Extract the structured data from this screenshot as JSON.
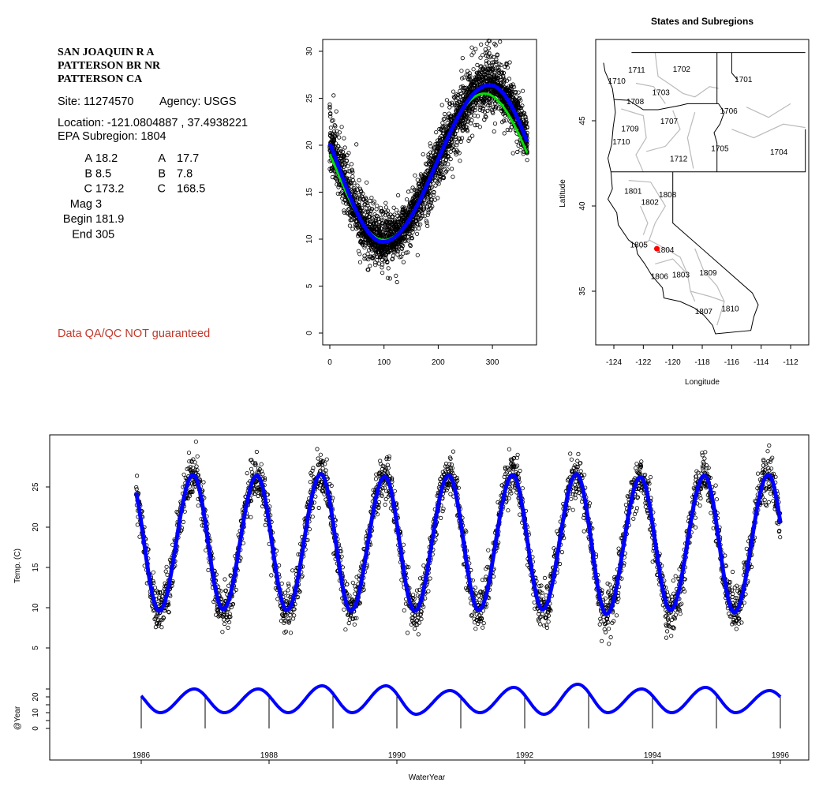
{
  "header": {
    "title_lines": [
      "SAN JOAQUIN R A",
      "PATTERSON BR NR",
      "PATTERSON CA"
    ],
    "site": "Site: 11274570",
    "agency": "Agency: USGS",
    "location": "Location: -121.0804887 , 37.4938221",
    "epa_subregion": "EPA Subregion: 1804"
  },
  "params": {
    "left": [
      {
        "k": "A",
        "v": "18.2"
      },
      {
        "k": "B",
        "v": "8.5"
      },
      {
        "k": "C",
        "v": "173.2"
      },
      {
        "k": "Mag",
        "v": "3"
      },
      {
        "k": "Begin",
        "v": "181.9"
      },
      {
        "k": "End",
        "v": "305"
      }
    ],
    "right": [
      {
        "k": "A",
        "v": "17.7"
      },
      {
        "k": "B",
        "v": "7.8"
      },
      {
        "k": "C",
        "v": "168.5"
      }
    ]
  },
  "disclaimer": "Data QA/QC NOT guaranteed",
  "colors": {
    "fit_blue": "#0000ff",
    "fit_green": "#00e000",
    "points": "#000000",
    "disclaimer": "#c0392b",
    "site_marker": "#ff0000",
    "subregion_lines": "#bbbbbb"
  },
  "chart_data": [
    {
      "type": "scatter",
      "name": "seasonal-day-of-water-year",
      "title": "",
      "xlabel": "",
      "ylabel": "",
      "xlim": [
        -5,
        380
      ],
      "ylim": [
        -1,
        31
      ],
      "xticks": [
        "0",
        "100",
        "200",
        "300"
      ],
      "yticks": [
        "0",
        "5",
        "10",
        "15",
        "20",
        "25",
        "30"
      ],
      "points_model": {
        "n_years": 10,
        "noise_sd": 1.6
      },
      "series": [
        {
          "name": "fit-blue",
          "color": "#0000ff",
          "trough_day": 98,
          "trough_value": 9.7,
          "peak_day": 295,
          "peak_value": 26.4
        },
        {
          "name": "fit-green",
          "color": "#00e000",
          "trough_day": 100,
          "trough_value": 9.9,
          "peak_day": 285,
          "peak_value": 25.5
        }
      ],
      "x_range_days": [
        0,
        365
      ]
    },
    {
      "type": "map",
      "name": "states-and-subregions",
      "title": "States and Subregions",
      "xlabel": "Longitude",
      "ylabel": "Latitude",
      "xticks": [
        "-124",
        "-122",
        "-120",
        "-118",
        "-116",
        "-114",
        "-112"
      ],
      "yticks": [
        "35",
        "40",
        "45"
      ],
      "site": {
        "lon": -121.0804887,
        "lat": 37.4938221
      },
      "subregions": [
        {
          "id": "1702",
          "lon": -119.4,
          "lat": 48.05
        },
        {
          "id": "1701",
          "lon": -115.2,
          "lat": 47.45
        },
        {
          "id": "1711",
          "lon": -122.45,
          "lat": 48.0
        },
        {
          "id": "1710",
          "lon": -123.8,
          "lat": 47.35
        },
        {
          "id": "1703",
          "lon": -120.8,
          "lat": 46.7
        },
        {
          "id": "1708",
          "lon": -122.55,
          "lat": 46.15
        },
        {
          "id": "1706",
          "lon": -116.2,
          "lat": 45.6
        },
        {
          "id": "1707",
          "lon": -120.25,
          "lat": 45.0
        },
        {
          "id": "1709",
          "lon": -122.9,
          "lat": 44.55
        },
        {
          "id": "1710",
          "lon": -123.5,
          "lat": 43.8
        },
        {
          "id": "1705",
          "lon": -116.8,
          "lat": 43.4
        },
        {
          "id": "1704",
          "lon": -112.8,
          "lat": 43.2
        },
        {
          "id": "1712",
          "lon": -119.6,
          "lat": 42.8
        },
        {
          "id": "1801",
          "lon": -122.7,
          "lat": 40.9
        },
        {
          "id": "1808",
          "lon": -120.35,
          "lat": 40.7
        },
        {
          "id": "1802",
          "lon": -121.55,
          "lat": 40.25
        },
        {
          "id": "1805",
          "lon": -122.3,
          "lat": 37.75
        },
        {
          "id": "1804",
          "lon": -120.5,
          "lat": 37.45
        },
        {
          "id": "1806",
          "lon": -120.9,
          "lat": 35.9
        },
        {
          "id": "1803",
          "lon": -119.45,
          "lat": 36.0
        },
        {
          "id": "1809",
          "lon": -117.6,
          "lat": 36.1
        },
        {
          "id": "1807",
          "lon": -117.9,
          "lat": 33.85
        },
        {
          "id": "1810",
          "lon": -116.1,
          "lat": 34.0
        }
      ],
      "state_lines": [
        [
          [
            -124.7,
            48.4
          ],
          [
            -124.6,
            47.9
          ],
          [
            -124.1,
            46.9
          ],
          [
            -124.0,
            46.3
          ],
          [
            -123.9,
            45.5
          ],
          [
            -124.05,
            44.6
          ],
          [
            -124.15,
            43.6
          ],
          [
            -124.4,
            42.8
          ],
          [
            -124.2,
            42.0
          ],
          [
            -124.1,
            41.0
          ],
          [
            -124.4,
            40.4
          ],
          [
            -123.8,
            39.6
          ],
          [
            -123.7,
            38.9
          ],
          [
            -123.0,
            38.0
          ],
          [
            -122.5,
            37.7
          ],
          [
            -122.4,
            37.2
          ],
          [
            -121.9,
            36.6
          ],
          [
            -121.4,
            35.9
          ],
          [
            -120.7,
            35.2
          ],
          [
            -120.6,
            34.6
          ],
          [
            -119.5,
            34.4
          ],
          [
            -118.5,
            34.0
          ],
          [
            -117.9,
            33.6
          ],
          [
            -117.3,
            33.0
          ],
          [
            -117.1,
            32.5
          ],
          [
            -114.7,
            32.7
          ],
          [
            -114.5,
            33.5
          ],
          [
            -114.2,
            34.2
          ],
          [
            -114.6,
            34.9
          ],
          [
            -120.0,
            39.0
          ],
          [
            -120.0,
            42.0
          ]
        ],
        [
          [
            -124.2,
            42.0
          ],
          [
            -111.0,
            42.0
          ],
          [
            -111.0,
            44.5
          ]
        ],
        [
          [
            -124.0,
            46.25
          ],
          [
            -123.0,
            46.2
          ],
          [
            -122.0,
            45.65
          ],
          [
            -121.0,
            45.65
          ],
          [
            -119.5,
            45.9
          ],
          [
            -119.0,
            46.0
          ],
          [
            -116.9,
            46.0
          ],
          [
            -116.5,
            45.5
          ],
          [
            -116.8,
            44.8
          ],
          [
            -117.2,
            44.3
          ],
          [
            -117.0,
            43.7
          ],
          [
            -117.0,
            42.0
          ]
        ],
        [
          [
            -117.0,
            49.0
          ],
          [
            -117.0,
            46.0
          ]
        ],
        [
          [
            -116.0,
            49.0
          ],
          [
            -116.0,
            47.8
          ],
          [
            -115.6,
            47.4
          ]
        ],
        [
          [
            -122.8,
            49.0
          ],
          [
            -111.0,
            49.0
          ]
        ]
      ],
      "subregion_lines": [
        [
          [
            -121.2,
            49
          ],
          [
            -121.0,
            47.6
          ],
          [
            -120.3,
            47.2
          ],
          [
            -119.3,
            46.6
          ],
          [
            -118.5,
            46.4
          ],
          [
            -117.5,
            47.0
          ],
          [
            -116.9,
            46.9
          ]
        ],
        [
          [
            -122.5,
            47.2
          ],
          [
            -121.3,
            47.0
          ],
          [
            -120.5,
            46.0
          ]
        ],
        [
          [
            -123.5,
            45.7
          ],
          [
            -122.0,
            45.3
          ],
          [
            -121.8,
            44.0
          ],
          [
            -122.5,
            43.0
          ],
          [
            -122.0,
            42.0
          ]
        ],
        [
          [
            -120.0,
            45.6
          ],
          [
            -119.5,
            44.5
          ],
          [
            -120.5,
            43.5
          ],
          [
            -121.8,
            43.2
          ]
        ],
        [
          [
            -118.5,
            45.5
          ],
          [
            -119.0,
            44.0
          ],
          [
            -118.6,
            42.2
          ]
        ],
        [
          [
            -116.0,
            44.5
          ],
          [
            -114.5,
            44.0
          ],
          [
            -112.5,
            44.8
          ],
          [
            -111.0,
            44.6
          ]
        ],
        [
          [
            -115.0,
            45.8
          ],
          [
            -113.5,
            45.2
          ],
          [
            -112.0,
            46.0
          ]
        ],
        [
          [
            -123.0,
            41.5
          ],
          [
            -121.5,
            41.4
          ],
          [
            -120.5,
            40.0
          ],
          [
            -121.2,
            39.0
          ],
          [
            -121.6,
            38.0
          ],
          [
            -122.2,
            37.5
          ]
        ],
        [
          [
            -122.2,
            40.0
          ],
          [
            -121.7,
            39.0
          ],
          [
            -122.0,
            38.3
          ]
        ],
        [
          [
            -121.6,
            38.0
          ],
          [
            -120.5,
            37.5
          ],
          [
            -119.5,
            37.0
          ],
          [
            -119.0,
            36.0
          ],
          [
            -118.8,
            35.0
          ],
          [
            -118.5,
            34.4
          ]
        ],
        [
          [
            -121.2,
            36.6
          ],
          [
            -120.0,
            36.9
          ],
          [
            -119.0,
            36.0
          ]
        ],
        [
          [
            -118.5,
            37.5
          ],
          [
            -117.9,
            36.2
          ],
          [
            -117.0,
            35.3
          ],
          [
            -116.5,
            34.4
          ],
          [
            -117.0,
            33.0
          ]
        ],
        [
          [
            -118.8,
            35.0
          ],
          [
            -117.5,
            34.7
          ],
          [
            -116.5,
            34.4
          ]
        ]
      ]
    },
    {
      "type": "line",
      "name": "temperature-time-series",
      "xlabel": "WaterYear",
      "ylabel": "Temp. (C)",
      "ylabel_lower": "@Year",
      "xlim": [
        1984.55,
        1996.45
      ],
      "xticks": [
        "1986",
        "1988",
        "1990",
        "1992",
        "1994",
        "1996"
      ],
      "yticks": [
        "5",
        "10",
        "15",
        "20",
        "25"
      ],
      "yticks_lower": [
        "0",
        "10",
        "20"
      ],
      "start": 1985.92,
      "end": 1996.0,
      "trough_fraction": 0.28,
      "peak_fraction": 0.81,
      "annual_peaks": [
        26.5,
        26.4,
        26.6,
        26.3,
        26.4,
        26.5,
        26.6,
        26.2,
        26.4,
        26.5,
        26.4
      ],
      "annual_troughs": [
        9.6,
        9.8,
        9.7,
        9.6,
        9.6,
        9.7,
        9.8,
        9.2,
        9.7,
        9.4,
        9.6
      ],
      "points_model": {
        "noise_sd": 1.4
      },
      "lower_series": {
        "name": "@Year",
        "peak_fraction": 0.83,
        "trough_fraction": 0.3,
        "peaks": [
          25,
          25,
          27,
          27,
          24,
          26,
          28,
          25,
          26,
          24
        ],
        "troughs": [
          10,
          10,
          10,
          10,
          9,
          10,
          9,
          10,
          10,
          10
        ],
        "year_marks": [
          1986,
          1987,
          1988,
          1989,
          1990,
          1991,
          1992,
          1993,
          1994,
          1995,
          1996
        ]
      }
    }
  ]
}
